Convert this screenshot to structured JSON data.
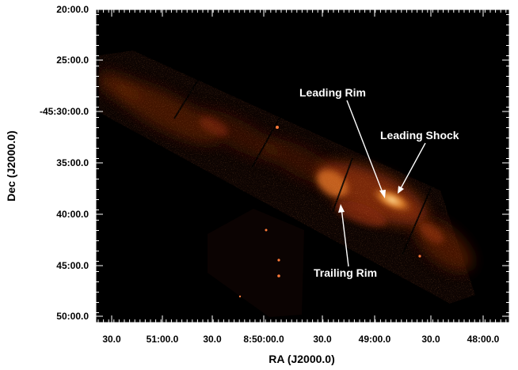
{
  "figure": {
    "xlabel": "RA (J2000.0)",
    "ylabel": "Dec (J2000.0)",
    "x_ticks": [
      "30.0",
      "51:00.0",
      "30.0",
      "8:50:00.0",
      "30.0",
      "49:00.0",
      "30.0",
      "48:00.0"
    ],
    "y_ticks": [
      "20:00.0",
      "25:00.0",
      "-45:30:00.0",
      "35:00.0",
      "40:00.0",
      "45:00.0",
      "50:00.0"
    ],
    "annotations": {
      "leading_rim": "Leading Rim",
      "leading_shock": "Leading Shock",
      "trailing_rim": "Trailing Rim"
    },
    "colors": {
      "background": "#000000",
      "emission_dim": "#3a0d04",
      "emission_mid": "#a8380c",
      "emission_bright": "#ffc870",
      "annotation": "#ffffff",
      "frame": "#ffffff"
    }
  }
}
